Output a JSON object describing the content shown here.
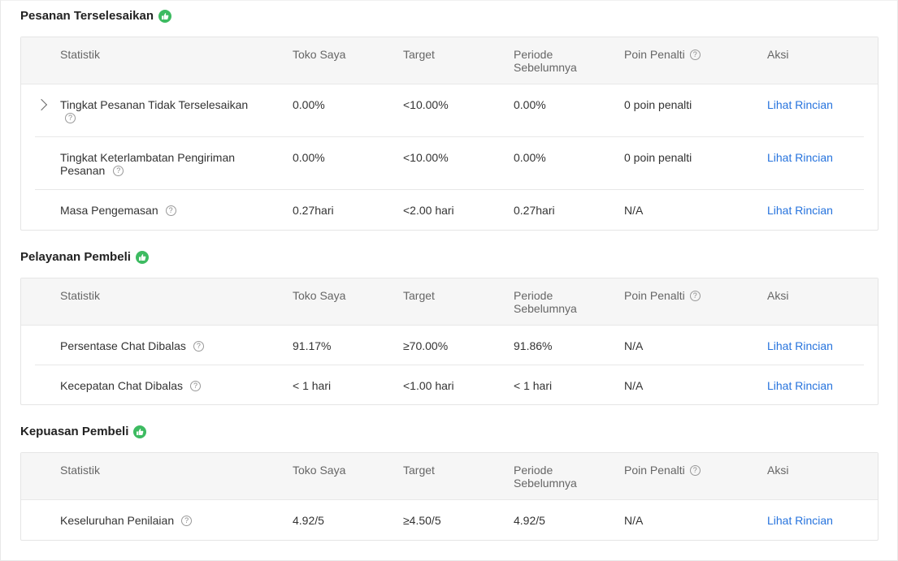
{
  "headers": {
    "statistik": "Statistik",
    "toko": "Toko Saya",
    "target": "Target",
    "periode_1": "Periode",
    "periode_2": "Sebelumnya",
    "poin": "Poin Penalti",
    "aksi": "Aksi"
  },
  "help_glyph": "?",
  "link_label": "Lihat Rincian",
  "sections": [
    {
      "title": "Pesanan Terselesaikan",
      "rows": [
        {
          "stat_1": "Tingkat Pesanan Tidak Terselesaikan",
          "stat_2": "",
          "toko": "0.00%",
          "target": "<10.00%",
          "periode": "0.00%",
          "poin": "0 poin penalti"
        },
        {
          "stat_1": "Tingkat Keterlambatan Pengiriman",
          "stat_2": "Pesanan",
          "toko": "0.00%",
          "target": "<10.00%",
          "periode": "0.00%",
          "poin": "0 poin penalti"
        },
        {
          "stat_1": "Masa Pengemasan",
          "stat_2": "",
          "toko": "0.27hari",
          "target": "<2.00 hari",
          "periode": "0.27hari",
          "poin": "N/A"
        }
      ]
    },
    {
      "title": "Pelayanan Pembeli",
      "rows": [
        {
          "stat_1": "Persentase Chat Dibalas",
          "toko": "91.17%",
          "target": "≥70.00%",
          "periode": "91.86%",
          "poin": "N/A"
        },
        {
          "stat_1": "Kecepatan Chat Dibalas",
          "toko": "< 1 hari",
          "target": "<1.00 hari",
          "periode": "< 1 hari",
          "poin": "N/A"
        }
      ]
    },
    {
      "title": "Kepuasan Pembeli",
      "rows": [
        {
          "stat_1": "Keseluruhan Penilaian",
          "toko": "4.92/5",
          "target": "≥4.50/5",
          "periode": "4.92/5",
          "poin": "N/A"
        }
      ]
    }
  ],
  "colors": {
    "accent_link": "#2673dd",
    "badge_green": "#3dbb61"
  },
  "icons": {
    "badge": "thumbs-up-icon",
    "help": "help-circle-icon",
    "expand": "chevron-right-icon"
  }
}
